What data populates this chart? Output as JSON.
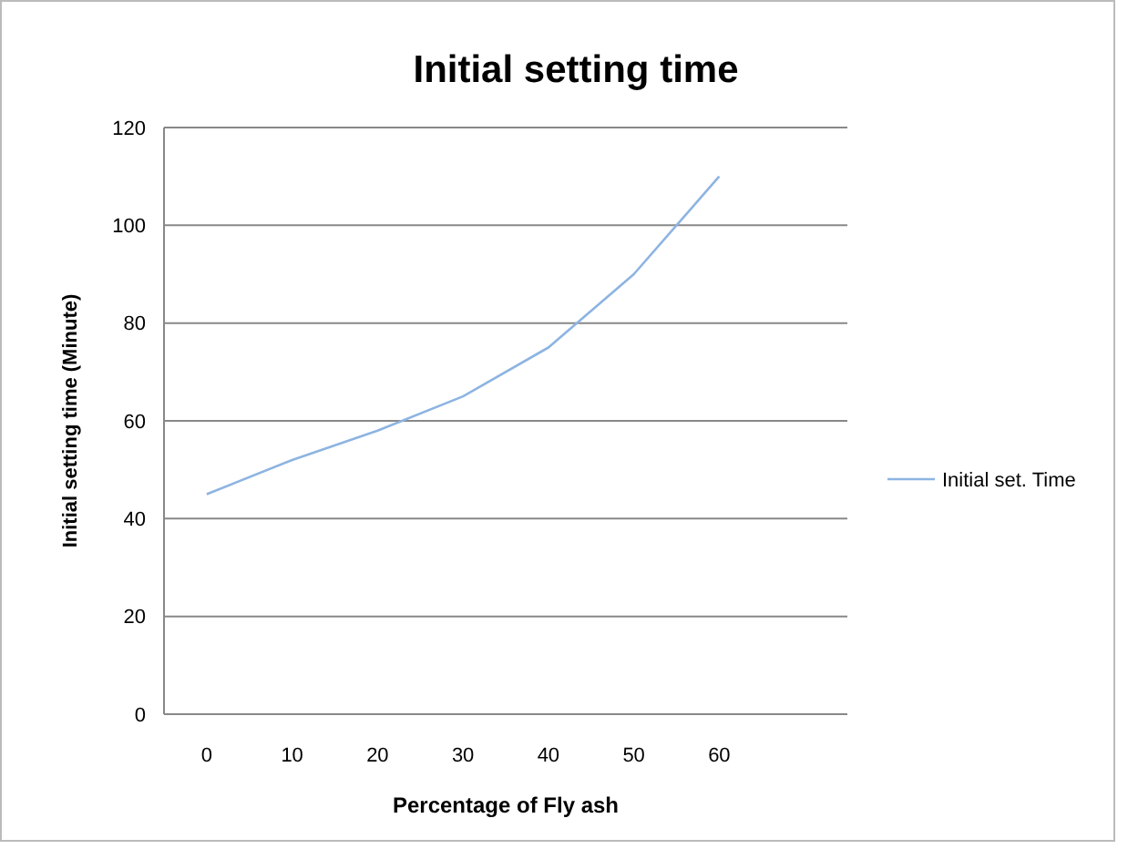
{
  "chart_data": {
    "type": "line",
    "title": "Initial setting time",
    "xlabel": "Percentage of Fly ash",
    "ylabel": "Initial setting time (Minute)",
    "categories": [
      "0",
      "10",
      "20",
      "30",
      "40",
      "50",
      "60",
      null
    ],
    "series": [
      {
        "name": "Initial set. Time",
        "color": "#8db4e2",
        "values": [
          45,
          52,
          58,
          65,
          75,
          90,
          110,
          null
        ]
      }
    ],
    "ylim": [
      0,
      120
    ],
    "yticks": [
      0,
      20,
      40,
      60,
      80,
      100,
      120
    ],
    "grid": "y",
    "legend": "right",
    "marker": "none",
    "line_style": "solid"
  }
}
